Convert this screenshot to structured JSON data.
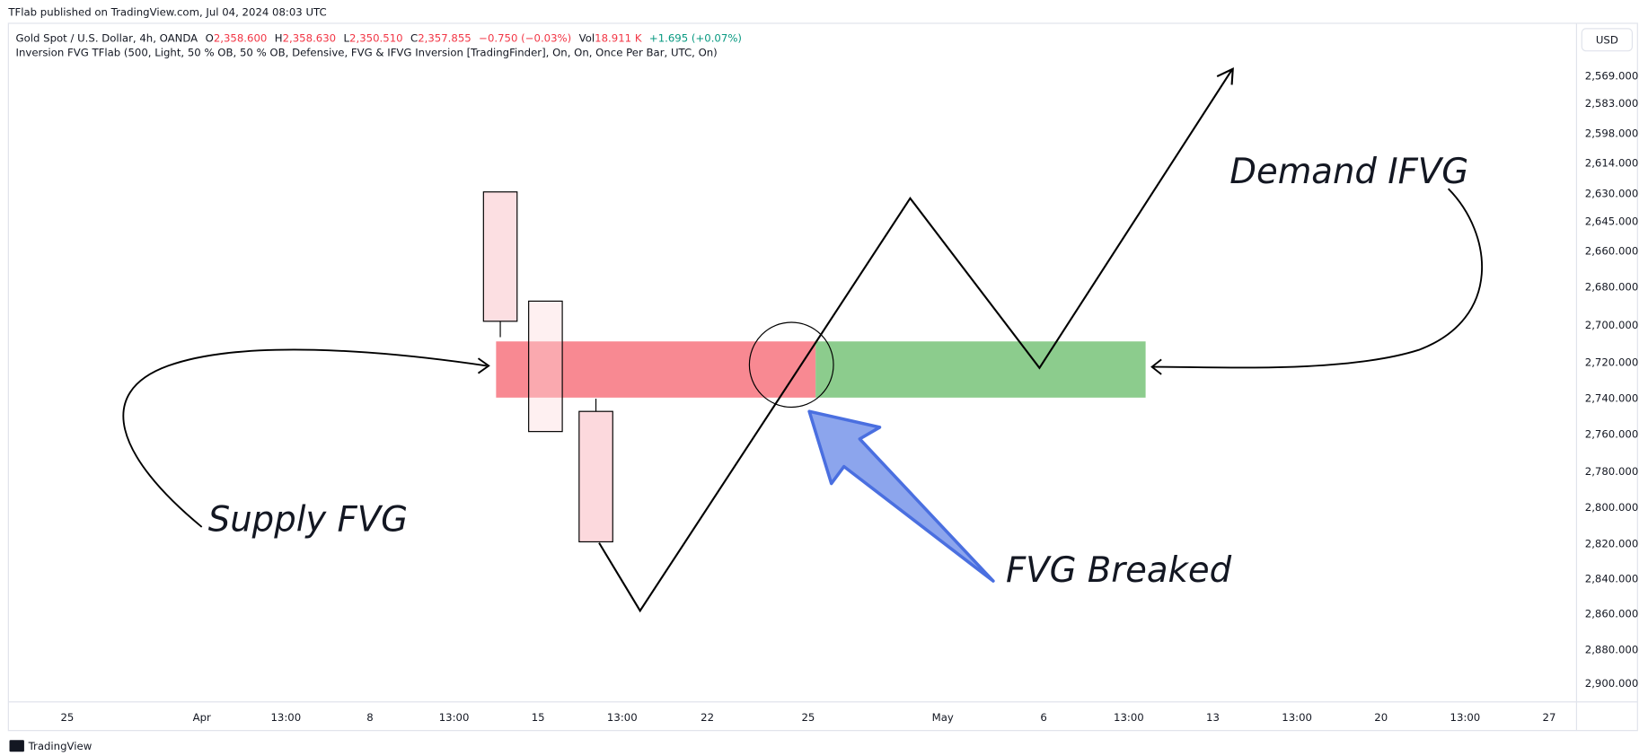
{
  "header": {
    "published": "TFlab published on TradingView.com, Jul 04, 2024 08:03 UTC",
    "symbol": "Gold Spot / U.S. Dollar, 4h, OANDA",
    "open_label": "O",
    "open": "2,358.600",
    "high_label": "H",
    "high": "2,358.630",
    "low_label": "L",
    "low": "2,350.510",
    "close_label": "C",
    "close": "2,357.855",
    "change": "−0.750 (−0.03%)",
    "vol_label": "Vol",
    "vol": "18.911 K",
    "vol_change": "+1.695 (+0.07%)",
    "indicator": "Inversion FVG TFlab (500, Light, 50 % OB, 50 % OB, Defensive, FVG & IFVG Inversion [TradingFinder], On, On, Once Per Bar, UTC, On)",
    "currency": "USD"
  },
  "price_axis": [
    "2,569.000",
    "2,583.000",
    "2,598.000",
    "2,614.000",
    "2,630.000",
    "2,645.000",
    "2,660.000",
    "2,680.000",
    "2,700.000",
    "2,720.000",
    "2,740.000",
    "2,760.000",
    "2,780.000",
    "2,800.000",
    "2,820.000",
    "2,840.000",
    "2,860.000",
    "2,880.000",
    "2,900.000"
  ],
  "time_axis": [
    "25",
    "Apr",
    "13:00",
    "8",
    "13:00",
    "15",
    "13:00",
    "22",
    "25",
    "May",
    "6",
    "13:00",
    "13",
    "13:00",
    "20",
    "13:00",
    "27"
  ],
  "annotations": {
    "supply": "Supply FVG",
    "breaked": "FVG Breaked",
    "demand": "Demand IFVG"
  },
  "footer": "TradingView"
}
